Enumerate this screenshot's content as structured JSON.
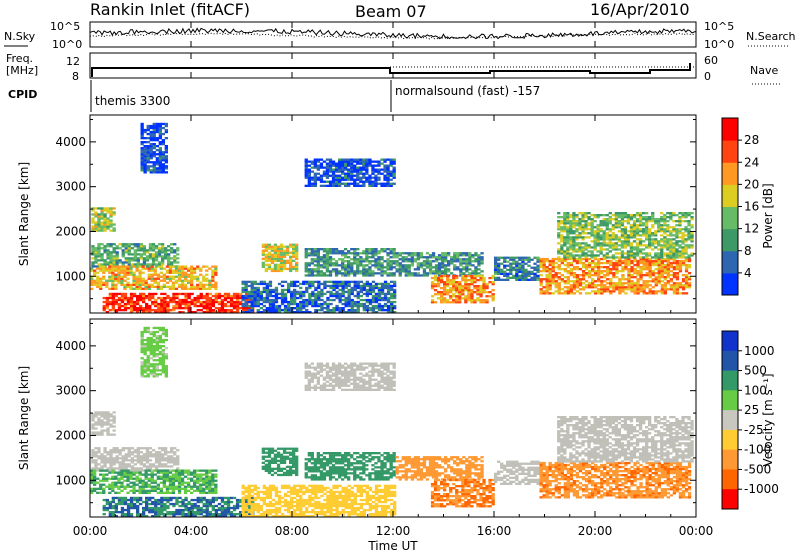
{
  "header": {
    "station": "Rankin Inlet (fitACF)",
    "beam": "Beam 07",
    "date": "16/Apr/2010"
  },
  "noise_panel": {
    "left_label": "N.Sky",
    "left_ticks": [
      "10^5",
      "10^0"
    ],
    "right_ticks": [
      "10^5",
      "10^0"
    ],
    "right_label": "N.Search"
  },
  "freq_panel": {
    "left_label_1": "Freq.",
    "left_label_2": "[MHz]",
    "left_ticks": [
      "12",
      "8"
    ],
    "right_ticks": [
      "60",
      "0"
    ],
    "right_label": "Nave"
  },
  "cpid": {
    "label": "CPID",
    "modes": [
      "themis 3300",
      "normalsound (fast) -157"
    ]
  },
  "colors": {
    "power": [
      "#0033ff",
      "#2e66b2",
      "#3d9966",
      "#66bb66",
      "#ddcc22",
      "#ff9922",
      "#ff4411",
      "#ff0000"
    ],
    "velocity": [
      "#ff0000",
      "#ff6600",
      "#ff9933",
      "#ffcc33",
      "#c8c8c0",
      "#66cc44",
      "#339966",
      "#2255aa",
      "#1133cc"
    ],
    "ground_scatter": "#c0c0b8"
  },
  "chart_data": [
    {
      "type": "heatmap",
      "title": "",
      "xlabel": "Time UT",
      "ylabel": "Slant Range [km]",
      "x_ticks": [
        "00:00",
        "04:00",
        "08:00",
        "12:00",
        "16:00",
        "20:00",
        "00:00"
      ],
      "xlim_hours": [
        0,
        24
      ],
      "y_ticks": [
        1000,
        2000,
        3000,
        4000
      ],
      "ylim_km": [
        180,
        4600
      ],
      "colorbar_label": "Power [dB]",
      "colorbar_ticks": [
        4,
        8,
        12,
        16,
        20,
        24,
        28
      ],
      "colorbar_range": [
        0,
        32
      ],
      "regions": [
        {
          "t": [
            0.05,
            0.9
          ],
          "r": [
            2000,
            2500
          ],
          "value": 16
        },
        {
          "t": [
            0.05,
            3.5
          ],
          "r": [
            1200,
            1700
          ],
          "value": 12
        },
        {
          "t": [
            0.0,
            5.0
          ],
          "r": [
            700,
            1200
          ],
          "value": 20
        },
        {
          "t": [
            0.5,
            6.5
          ],
          "r": [
            180,
            600
          ],
          "value": 28
        },
        {
          "t": [
            6.8,
            8.2
          ],
          "r": [
            1100,
            1700
          ],
          "value": 18
        },
        {
          "t": [
            8.5,
            12.0
          ],
          "r": [
            1000,
            1600
          ],
          "value": 10
        },
        {
          "t": [
            6.0,
            12.0
          ],
          "r": [
            180,
            900
          ],
          "value": 6
        },
        {
          "t": [
            12.1,
            15.5
          ],
          "r": [
            1000,
            1500
          ],
          "value": 10
        },
        {
          "t": [
            13.5,
            16.0
          ],
          "r": [
            400,
            1000
          ],
          "value": 22
        },
        {
          "t": [
            16.0,
            17.8
          ],
          "r": [
            900,
            1400
          ],
          "value": 8
        },
        {
          "t": [
            17.8,
            23.8
          ],
          "r": [
            600,
            1400
          ],
          "value": 22
        },
        {
          "t": [
            18.5,
            23.8
          ],
          "r": [
            1400,
            2400
          ],
          "value": 14
        },
        {
          "t": [
            2.0,
            3.0
          ],
          "r": [
            3300,
            4400
          ],
          "value": 4
        },
        {
          "t": [
            8.5,
            12.0
          ],
          "r": [
            3000,
            3600
          ],
          "value": 4
        }
      ]
    },
    {
      "type": "heatmap",
      "title": "",
      "xlabel": "Time UT",
      "ylabel": "Slant Range [km]",
      "x_ticks": [
        "00:00",
        "04:00",
        "08:00",
        "12:00",
        "16:00",
        "20:00",
        "00:00"
      ],
      "xlim_hours": [
        0,
        24
      ],
      "y_ticks": [
        1000,
        2000,
        3000,
        4000
      ],
      "ylim_km": [
        180,
        4600
      ],
      "colorbar_label": "Velocity [m s⁻¹]",
      "colorbar_ticks": [
        "1000",
        "500",
        "100",
        "25",
        "-25",
        "-100",
        "-500",
        "-1000"
      ],
      "regions": [
        {
          "t": [
            0.05,
            0.9
          ],
          "r": [
            2000,
            2500
          ],
          "value": "gs"
        },
        {
          "t": [
            0.05,
            3.5
          ],
          "r": [
            1200,
            1700
          ],
          "value": "gs"
        },
        {
          "t": [
            0.0,
            5.0
          ],
          "r": [
            700,
            1200
          ],
          "value": 100
        },
        {
          "t": [
            0.5,
            6.5
          ],
          "r": [
            180,
            600
          ],
          "value": 500
        },
        {
          "t": [
            6.8,
            8.2
          ],
          "r": [
            1100,
            1700
          ],
          "value": 300
        },
        {
          "t": [
            8.5,
            12.0
          ],
          "r": [
            1000,
            1600
          ],
          "value": 200
        },
        {
          "t": [
            6.0,
            12.0
          ],
          "r": [
            180,
            900
          ],
          "value": -60
        },
        {
          "t": [
            12.1,
            15.5
          ],
          "r": [
            1000,
            1500
          ],
          "value": -300
        },
        {
          "t": [
            13.5,
            16.0
          ],
          "r": [
            400,
            1000
          ],
          "value": -500
        },
        {
          "t": [
            16.0,
            17.8
          ],
          "r": [
            900,
            1400
          ],
          "value": "gs"
        },
        {
          "t": [
            17.8,
            23.8
          ],
          "r": [
            600,
            1400
          ],
          "value": -400
        },
        {
          "t": [
            18.5,
            23.8
          ],
          "r": [
            1400,
            2400
          ],
          "value": "gs"
        },
        {
          "t": [
            2.0,
            3.0
          ],
          "r": [
            3300,
            4400
          ],
          "value": 40
        },
        {
          "t": [
            8.5,
            12.0
          ],
          "r": [
            3000,
            3600
          ],
          "value": "gs"
        }
      ]
    }
  ]
}
